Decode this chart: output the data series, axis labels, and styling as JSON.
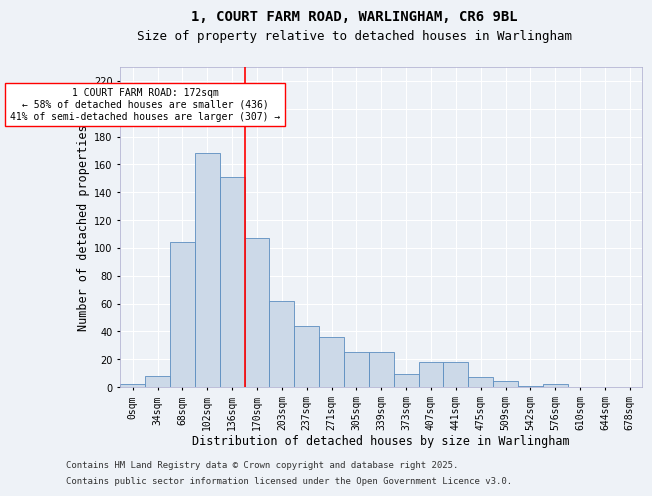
{
  "title_line1": "1, COURT FARM ROAD, WARLINGHAM, CR6 9BL",
  "title_line2": "Size of property relative to detached houses in Warlingham",
  "xlabel": "Distribution of detached houses by size in Warlingham",
  "ylabel": "Number of detached properties",
  "bar_values": [
    2,
    8,
    104,
    168,
    151,
    107,
    62,
    44,
    36,
    25,
    25,
    9,
    18,
    18,
    7,
    4,
    1,
    2,
    0,
    0,
    0
  ],
  "bin_labels": [
    "0sqm",
    "34sqm",
    "68sqm",
    "102sqm",
    "136sqm",
    "170sqm",
    "203sqm",
    "237sqm",
    "271sqm",
    "305sqm",
    "339sqm",
    "373sqm",
    "407sqm",
    "441sqm",
    "475sqm",
    "509sqm",
    "542sqm",
    "576sqm",
    "610sqm",
    "644sqm",
    "678sqm"
  ],
  "bar_color": "#ccd9e8",
  "bar_edge_color": "#5b8dc0",
  "property_line_bin": 5,
  "annotation_text": "1 COURT FARM ROAD: 172sqm\n← 58% of detached houses are smaller (436)\n41% of semi-detached houses are larger (307) →",
  "annotation_box_color": "white",
  "annotation_box_edge": "red",
  "red_line_color": "red",
  "ylim": [
    0,
    230
  ],
  "yticks": [
    0,
    20,
    40,
    60,
    80,
    100,
    120,
    140,
    160,
    180,
    200,
    220
  ],
  "footnote1": "Contains HM Land Registry data © Crown copyright and database right 2025.",
  "footnote2": "Contains public sector information licensed under the Open Government Licence v3.0.",
  "bg_color": "#eef2f7",
  "grid_color": "#ffffff",
  "title_fontsize": 10,
  "subtitle_fontsize": 9,
  "axis_label_fontsize": 8.5,
  "tick_fontsize": 7,
  "annotation_fontsize": 7,
  "footnote_fontsize": 6.5
}
